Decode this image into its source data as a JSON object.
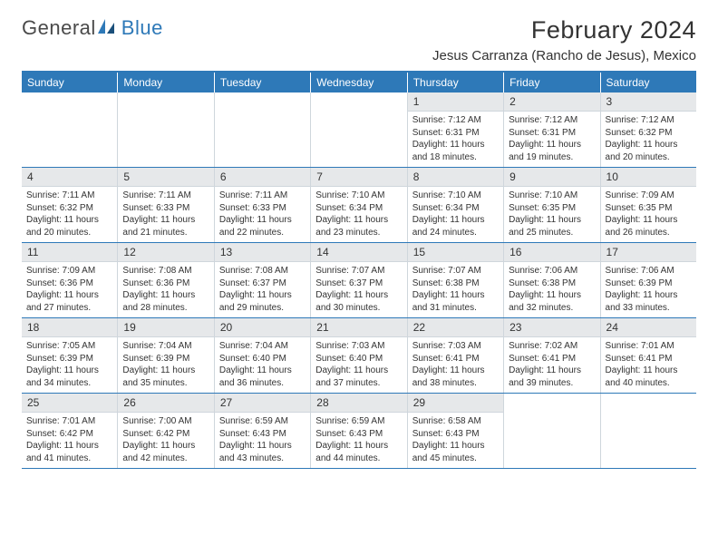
{
  "brand": {
    "part1": "General",
    "part2": "Blue"
  },
  "title": "February 2024",
  "location": "Jesus Carranza (Rancho de Jesus), Mexico",
  "colors": {
    "header_bg": "#2e79b8",
    "header_text": "#ffffff",
    "daynum_bg": "#e6e8ea",
    "border": "#cfd6dc",
    "text": "#333333"
  },
  "dayNames": [
    "Sunday",
    "Monday",
    "Tuesday",
    "Wednesday",
    "Thursday",
    "Friday",
    "Saturday"
  ],
  "layout": {
    "startOffset": 4,
    "daysInMonth": 29,
    "weeks": 5
  },
  "days": {
    "1": {
      "sunrise": "7:12 AM",
      "sunset": "6:31 PM",
      "dl1": "11 hours",
      "dl2": "and 18 minutes."
    },
    "2": {
      "sunrise": "7:12 AM",
      "sunset": "6:31 PM",
      "dl1": "11 hours",
      "dl2": "and 19 minutes."
    },
    "3": {
      "sunrise": "7:12 AM",
      "sunset": "6:32 PM",
      "dl1": "11 hours",
      "dl2": "and 20 minutes."
    },
    "4": {
      "sunrise": "7:11 AM",
      "sunset": "6:32 PM",
      "dl1": "11 hours",
      "dl2": "and 20 minutes."
    },
    "5": {
      "sunrise": "7:11 AM",
      "sunset": "6:33 PM",
      "dl1": "11 hours",
      "dl2": "and 21 minutes."
    },
    "6": {
      "sunrise": "7:11 AM",
      "sunset": "6:33 PM",
      "dl1": "11 hours",
      "dl2": "and 22 minutes."
    },
    "7": {
      "sunrise": "7:10 AM",
      "sunset": "6:34 PM",
      "dl1": "11 hours",
      "dl2": "and 23 minutes."
    },
    "8": {
      "sunrise": "7:10 AM",
      "sunset": "6:34 PM",
      "dl1": "11 hours",
      "dl2": "and 24 minutes."
    },
    "9": {
      "sunrise": "7:10 AM",
      "sunset": "6:35 PM",
      "dl1": "11 hours",
      "dl2": "and 25 minutes."
    },
    "10": {
      "sunrise": "7:09 AM",
      "sunset": "6:35 PM",
      "dl1": "11 hours",
      "dl2": "and 26 minutes."
    },
    "11": {
      "sunrise": "7:09 AM",
      "sunset": "6:36 PM",
      "dl1": "11 hours",
      "dl2": "and 27 minutes."
    },
    "12": {
      "sunrise": "7:08 AM",
      "sunset": "6:36 PM",
      "dl1": "11 hours",
      "dl2": "and 28 minutes."
    },
    "13": {
      "sunrise": "7:08 AM",
      "sunset": "6:37 PM",
      "dl1": "11 hours",
      "dl2": "and 29 minutes."
    },
    "14": {
      "sunrise": "7:07 AM",
      "sunset": "6:37 PM",
      "dl1": "11 hours",
      "dl2": "and 30 minutes."
    },
    "15": {
      "sunrise": "7:07 AM",
      "sunset": "6:38 PM",
      "dl1": "11 hours",
      "dl2": "and 31 minutes."
    },
    "16": {
      "sunrise": "7:06 AM",
      "sunset": "6:38 PM",
      "dl1": "11 hours",
      "dl2": "and 32 minutes."
    },
    "17": {
      "sunrise": "7:06 AM",
      "sunset": "6:39 PM",
      "dl1": "11 hours",
      "dl2": "and 33 minutes."
    },
    "18": {
      "sunrise": "7:05 AM",
      "sunset": "6:39 PM",
      "dl1": "11 hours",
      "dl2": "and 34 minutes."
    },
    "19": {
      "sunrise": "7:04 AM",
      "sunset": "6:39 PM",
      "dl1": "11 hours",
      "dl2": "and 35 minutes."
    },
    "20": {
      "sunrise": "7:04 AM",
      "sunset": "6:40 PM",
      "dl1": "11 hours",
      "dl2": "and 36 minutes."
    },
    "21": {
      "sunrise": "7:03 AM",
      "sunset": "6:40 PM",
      "dl1": "11 hours",
      "dl2": "and 37 minutes."
    },
    "22": {
      "sunrise": "7:03 AM",
      "sunset": "6:41 PM",
      "dl1": "11 hours",
      "dl2": "and 38 minutes."
    },
    "23": {
      "sunrise": "7:02 AM",
      "sunset": "6:41 PM",
      "dl1": "11 hours",
      "dl2": "and 39 minutes."
    },
    "24": {
      "sunrise": "7:01 AM",
      "sunset": "6:41 PM",
      "dl1": "11 hours",
      "dl2": "and 40 minutes."
    },
    "25": {
      "sunrise": "7:01 AM",
      "sunset": "6:42 PM",
      "dl1": "11 hours",
      "dl2": "and 41 minutes."
    },
    "26": {
      "sunrise": "7:00 AM",
      "sunset": "6:42 PM",
      "dl1": "11 hours",
      "dl2": "and 42 minutes."
    },
    "27": {
      "sunrise": "6:59 AM",
      "sunset": "6:43 PM",
      "dl1": "11 hours",
      "dl2": "and 43 minutes."
    },
    "28": {
      "sunrise": "6:59 AM",
      "sunset": "6:43 PM",
      "dl1": "11 hours",
      "dl2": "and 44 minutes."
    },
    "29": {
      "sunrise": "6:58 AM",
      "sunset": "6:43 PM",
      "dl1": "11 hours",
      "dl2": "and 45 minutes."
    }
  },
  "labels": {
    "sunrise": "Sunrise: ",
    "sunset": "Sunset: ",
    "daylight": "Daylight: "
  }
}
